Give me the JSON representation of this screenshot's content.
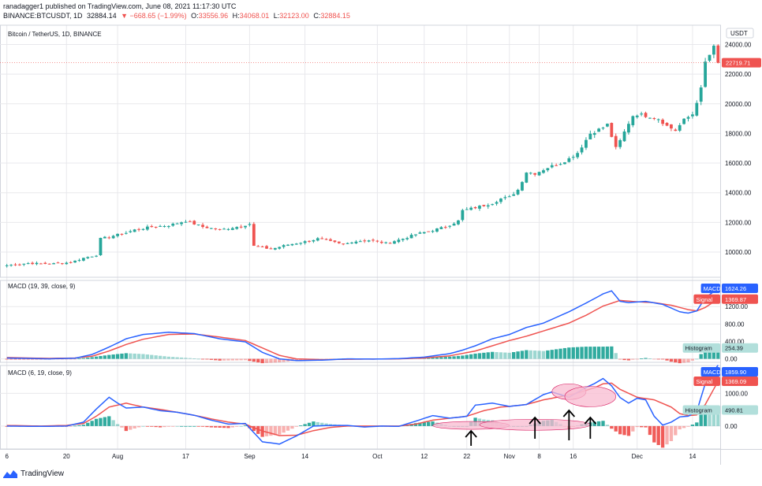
{
  "header": {
    "line1": "ranadagger1 published on TradingView.com, June 08, 2021 11:17:30 UTC",
    "symbol": "BINANCE:BTCUSDT, 1D",
    "last": "32884.14",
    "change": "▼ −668.65 (−1.99%)",
    "o_label": "O:",
    "o_val": "33556.96",
    "h_label": "H:",
    "h_val": "34068.01",
    "l_label": "L:",
    "l_val": "32123.00",
    "c_label": "C:",
    "c_val": "32884.15"
  },
  "footer": {
    "brand": "TradingView"
  },
  "colors": {
    "up": "#26a69a",
    "down": "#ef5350",
    "macd": "#2962ff",
    "signal": "#ef5350",
    "hist_up": "#26a69a",
    "hist_down": "#ef5350",
    "grid": "#e8e8ec",
    "annotation": "#f8bbd0"
  },
  "chart_data": [
    {
      "type": "candlestick",
      "title": "Bitcoin / TetherUS, 1D, BINANCE",
      "currency": "USDT",
      "last_price_label": "22719.71",
      "yticks": [
        10000,
        12000,
        14000,
        16000,
        18000,
        20000,
        22000,
        24000
      ],
      "ytick_labels": [
        "10000.00",
        "12000.00",
        "14000.00",
        "16000.00",
        "18000.00",
        "20000.00",
        "22000.00",
        "24000.00"
      ],
      "ylim": [
        8300,
        25300
      ],
      "xlabels": [
        {
          "label": "6",
          "day": 0
        },
        {
          "label": "20",
          "day": 14
        },
        {
          "label": "Aug",
          "day": 26
        },
        {
          "label": "17",
          "day": 42
        },
        {
          "label": "Sep",
          "day": 57
        },
        {
          "label": "14",
          "day": 70
        },
        {
          "label": "Oct",
          "day": 87
        },
        {
          "label": "12",
          "day": 98
        },
        {
          "label": "22",
          "day": 108
        },
        {
          "label": "Nov",
          "day": 118
        },
        {
          "label": "8",
          "day": 125
        },
        {
          "label": "16",
          "day": 133
        },
        {
          "label": "Dec",
          "day": 148
        },
        {
          "label": "14",
          "day": 161
        }
      ],
      "close_anchors": [
        [
          0,
          9100
        ],
        [
          5,
          9250
        ],
        [
          10,
          9200
        ],
        [
          15,
          9300
        ],
        [
          18,
          9600
        ],
        [
          21,
          9800
        ],
        [
          22,
          10900
        ],
        [
          25,
          11100
        ],
        [
          28,
          11300
        ],
        [
          30,
          11500
        ],
        [
          34,
          11700
        ],
        [
          38,
          11800
        ],
        [
          42,
          12100
        ],
        [
          46,
          11700
        ],
        [
          50,
          11500
        ],
        [
          54,
          11700
        ],
        [
          57,
          11900
        ],
        [
          58,
          10400
        ],
        [
          62,
          10200
        ],
        [
          66,
          10500
        ],
        [
          70,
          10700
        ],
        [
          73,
          10900
        ],
        [
          76,
          10700
        ],
        [
          79,
          10500
        ],
        [
          81,
          10700
        ],
        [
          85,
          10800
        ],
        [
          89,
          10600
        ],
        [
          93,
          10900
        ],
        [
          96,
          11200
        ],
        [
          99,
          11400
        ],
        [
          103,
          11700
        ],
        [
          106,
          12100
        ],
        [
          107,
          12800
        ],
        [
          110,
          13000
        ],
        [
          114,
          13300
        ],
        [
          116,
          13600
        ],
        [
          118,
          13700
        ],
        [
          120,
          14200
        ],
        [
          122,
          15400
        ],
        [
          124,
          15300
        ],
        [
          127,
          15700
        ],
        [
          130,
          16000
        ],
        [
          132,
          16300
        ],
        [
          134,
          16700
        ],
        [
          137,
          18000
        ],
        [
          140,
          18400
        ],
        [
          141,
          18600
        ],
        [
          143,
          17000
        ],
        [
          144,
          17500
        ],
        [
          146,
          18700
        ],
        [
          147,
          19200
        ],
        [
          148,
          19300
        ],
        [
          150,
          19200
        ],
        [
          152,
          19100
        ],
        [
          153,
          19000
        ],
        [
          155,
          18500
        ],
        [
          157,
          18200
        ],
        [
          159,
          18900
        ],
        [
          161,
          19300
        ],
        [
          163,
          21000
        ],
        [
          164,
          22800
        ],
        [
          165,
          23300
        ],
        [
          166,
          23800
        ],
        [
          167,
          22720
        ]
      ]
    },
    {
      "type": "line",
      "title": "MACD (19, 39, close, 9)",
      "yticks": [
        0,
        400,
        800,
        1200
      ],
      "ytick_labels": [
        "0.00",
        "400.00",
        "800.00",
        "1200.00"
      ],
      "ylim": [
        -80,
        1800
      ],
      "macd_label": "MACD",
      "macd_value": "1624.26",
      "signal_label": "Signal",
      "signal_value": "1369.87",
      "hist_label": "Histogram",
      "hist_value": "254.39",
      "macd_anchors": [
        [
          0,
          20
        ],
        [
          10,
          0
        ],
        [
          16,
          15
        ],
        [
          20,
          100
        ],
        [
          24,
          270
        ],
        [
          28,
          460
        ],
        [
          32,
          560
        ],
        [
          38,
          610
        ],
        [
          44,
          580
        ],
        [
          50,
          460
        ],
        [
          56,
          390
        ],
        [
          60,
          150
        ],
        [
          64,
          0
        ],
        [
          68,
          -40
        ],
        [
          74,
          -30
        ],
        [
          80,
          0
        ],
        [
          86,
          -5
        ],
        [
          92,
          5
        ],
        [
          98,
          40
        ],
        [
          104,
          120
        ],
        [
          107,
          200
        ],
        [
          110,
          300
        ],
        [
          114,
          460
        ],
        [
          118,
          560
        ],
        [
          122,
          720
        ],
        [
          126,
          820
        ],
        [
          132,
          1080
        ],
        [
          136,
          1280
        ],
        [
          140,
          1490
        ],
        [
          142,
          1560
        ],
        [
          144,
          1320
        ],
        [
          146,
          1290
        ],
        [
          150,
          1320
        ],
        [
          154,
          1250
        ],
        [
          158,
          1080
        ],
        [
          160,
          1050
        ],
        [
          162,
          1100
        ],
        [
          164,
          1400
        ],
        [
          167,
          1620
        ]
      ],
      "signal_anchors": [
        [
          0,
          30
        ],
        [
          10,
          10
        ],
        [
          16,
          20
        ],
        [
          20,
          60
        ],
        [
          24,
          180
        ],
        [
          28,
          330
        ],
        [
          32,
          450
        ],
        [
          38,
          560
        ],
        [
          44,
          570
        ],
        [
          50,
          500
        ],
        [
          56,
          420
        ],
        [
          60,
          250
        ],
        [
          64,
          80
        ],
        [
          68,
          0
        ],
        [
          74,
          -20
        ],
        [
          80,
          -10
        ],
        [
          86,
          -5
        ],
        [
          92,
          0
        ],
        [
          98,
          20
        ],
        [
          104,
          70
        ],
        [
          110,
          180
        ],
        [
          114,
          300
        ],
        [
          118,
          420
        ],
        [
          122,
          520
        ],
        [
          126,
          640
        ],
        [
          132,
          820
        ],
        [
          136,
          1000
        ],
        [
          140,
          1210
        ],
        [
          144,
          1340
        ],
        [
          148,
          1310
        ],
        [
          152,
          1290
        ],
        [
          156,
          1230
        ],
        [
          160,
          1130
        ],
        [
          162,
          1100
        ],
        [
          164,
          1180
        ],
        [
          167,
          1370
        ]
      ]
    },
    {
      "type": "line",
      "title": "MACD (6, 19, close, 9)",
      "yticks": [
        0,
        1000
      ],
      "ytick_labels": [
        "0.00",
        "1000.00"
      ],
      "ylim": [
        -700,
        1850
      ],
      "macd_label": "MACD",
      "macd_value": "1859.90",
      "signal_label": "Signal",
      "signal_value": "1369.09",
      "hist_label": "Histogram",
      "hist_value": "490.81",
      "macd_anchors": [
        [
          0,
          0
        ],
        [
          8,
          -10
        ],
        [
          14,
          0
        ],
        [
          18,
          120
        ],
        [
          21,
          520
        ],
        [
          24,
          880
        ],
        [
          26,
          700
        ],
        [
          28,
          550
        ],
        [
          32,
          580
        ],
        [
          36,
          470
        ],
        [
          40,
          420
        ],
        [
          44,
          330
        ],
        [
          48,
          180
        ],
        [
          52,
          60
        ],
        [
          56,
          80
        ],
        [
          58,
          -200
        ],
        [
          60,
          -480
        ],
        [
          64,
          -550
        ],
        [
          68,
          -300
        ],
        [
          72,
          0
        ],
        [
          76,
          20
        ],
        [
          80,
          20
        ],
        [
          84,
          -30
        ],
        [
          88,
          0
        ],
        [
          92,
          -10
        ],
        [
          96,
          150
        ],
        [
          100,
          320
        ],
        [
          104,
          240
        ],
        [
          108,
          300
        ],
        [
          110,
          640
        ],
        [
          114,
          700
        ],
        [
          118,
          600
        ],
        [
          122,
          660
        ],
        [
          126,
          960
        ],
        [
          128,
          1040
        ],
        [
          132,
          880
        ],
        [
          136,
          1180
        ],
        [
          138,
          1300
        ],
        [
          140,
          1450
        ],
        [
          142,
          1230
        ],
        [
          144,
          870
        ],
        [
          146,
          700
        ],
        [
          148,
          850
        ],
        [
          150,
          800
        ],
        [
          152,
          300
        ],
        [
          154,
          30
        ],
        [
          156,
          120
        ],
        [
          158,
          280
        ],
        [
          160,
          300
        ],
        [
          162,
          450
        ],
        [
          164,
          1300
        ],
        [
          167,
          1860
        ]
      ],
      "signal_anchors": [
        [
          0,
          20
        ],
        [
          8,
          0
        ],
        [
          14,
          20
        ],
        [
          18,
          80
        ],
        [
          21,
          300
        ],
        [
          24,
          580
        ],
        [
          28,
          700
        ],
        [
          32,
          580
        ],
        [
          36,
          510
        ],
        [
          40,
          420
        ],
        [
          44,
          330
        ],
        [
          48,
          220
        ],
        [
          52,
          120
        ],
        [
          56,
          60
        ],
        [
          58,
          -50
        ],
        [
          60,
          -150
        ],
        [
          64,
          -290
        ],
        [
          68,
          -280
        ],
        [
          72,
          -140
        ],
        [
          76,
          -40
        ],
        [
          80,
          0
        ],
        [
          84,
          0
        ],
        [
          88,
          0
        ],
        [
          92,
          0
        ],
        [
          96,
          60
        ],
        [
          100,
          180
        ],
        [
          104,
          240
        ],
        [
          108,
          300
        ],
        [
          112,
          470
        ],
        [
          116,
          580
        ],
        [
          118,
          600
        ],
        [
          122,
          660
        ],
        [
          126,
          800
        ],
        [
          130,
          900
        ],
        [
          134,
          1010
        ],
        [
          138,
          1170
        ],
        [
          140,
          1290
        ],
        [
          142,
          1310
        ],
        [
          144,
          1120
        ],
        [
          148,
          880
        ],
        [
          152,
          800
        ],
        [
          156,
          580
        ],
        [
          158,
          380
        ],
        [
          160,
          320
        ],
        [
          162,
          340
        ],
        [
          164,
          660
        ],
        [
          167,
          1370
        ]
      ]
    }
  ]
}
